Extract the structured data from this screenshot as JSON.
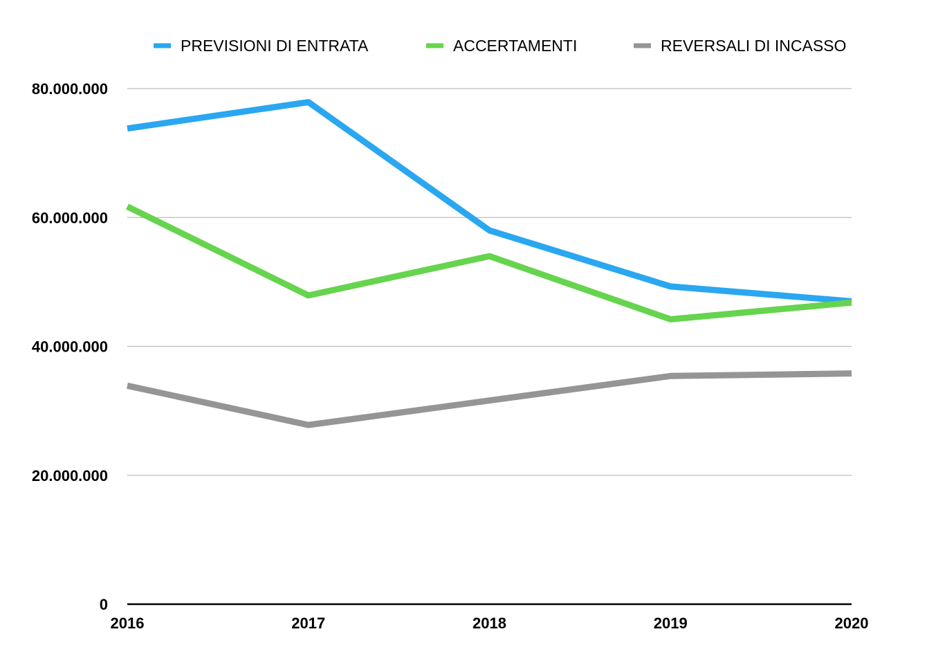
{
  "chart_data": {
    "type": "line",
    "title": "",
    "xlabel": "",
    "ylabel": "",
    "categories": [
      "2016",
      "2017",
      "2018",
      "2019",
      "2020"
    ],
    "ylim": [
      0,
      80000000
    ],
    "yticks": [
      0,
      20000000,
      40000000,
      60000000,
      80000000
    ],
    "ytick_labels": [
      "0",
      "20.000.000",
      "40.000.000",
      "60.000.000",
      "80.000.000"
    ],
    "grid": true,
    "legend_position": "top",
    "series": [
      {
        "name": "PREVISIONI DI ENTRATA",
        "color": "#2aa7f0",
        "values": [
          73800000,
          77900000,
          58000000,
          49300000,
          47000000
        ]
      },
      {
        "name": "ACCERTAMENTI",
        "color": "#66d44e",
        "values": [
          61700000,
          47900000,
          54000000,
          44200000,
          46800000
        ]
      },
      {
        "name": "REVERSALI DI INCASSO",
        "color": "#959595",
        "values": [
          33900000,
          27800000,
          31600000,
          35400000,
          35800000
        ]
      }
    ]
  }
}
